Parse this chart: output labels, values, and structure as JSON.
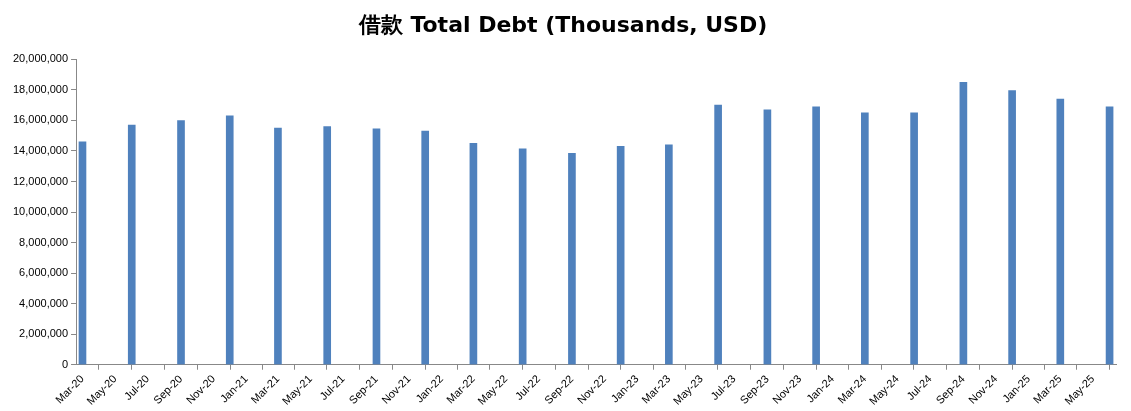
{
  "chart_data": {
    "type": "bar",
    "title": "借款 Total Debt (Thousands, USD)",
    "x": [
      "2020-03",
      "2020-06",
      "2020-09",
      "2020-12",
      "2021-03",
      "2021-06",
      "2021-09",
      "2021-12",
      "2022-03",
      "2022-06",
      "2022-09",
      "2022-12",
      "2023-03",
      "2023-06",
      "2023-09",
      "2023-12",
      "2024-03",
      "2024-06",
      "2024-09",
      "2024-12",
      "2025-03",
      "2025-06"
    ],
    "series": [
      {
        "color": "#4f81bd",
        "values": [
          14600000,
          15700000,
          16000000,
          16300000,
          15500000,
          15600000,
          15450000,
          15300000,
          14500000,
          14150000,
          13850000,
          14300000,
          14400000,
          17000000,
          16700000,
          16900000,
          16500000,
          16500000,
          18500000,
          17950000,
          17400000,
          16900000
        ]
      }
    ],
    "xlim": [
      "2020-02-18",
      "2025-06-13"
    ],
    "xticks": [
      {
        "value": "2020-03",
        "label": "Mar-20"
      },
      {
        "value": "2020-05",
        "label": "May-20"
      },
      {
        "value": "2020-07",
        "label": "Jul-20"
      },
      {
        "value": "2020-09",
        "label": "Sep-20"
      },
      {
        "value": "2020-11",
        "label": "Nov-20"
      },
      {
        "value": "2021-01",
        "label": "Jan-21"
      },
      {
        "value": "2021-03",
        "label": "Mar-21"
      },
      {
        "value": "2021-05",
        "label": "May-21"
      },
      {
        "value": "2021-07",
        "label": "Jul-21"
      },
      {
        "value": "2021-09",
        "label": "Sep-21"
      },
      {
        "value": "2021-11",
        "label": "Nov-21"
      },
      {
        "value": "2022-01",
        "label": "Jan-22"
      },
      {
        "value": "2022-03",
        "label": "Mar-22"
      },
      {
        "value": "2022-05",
        "label": "May-22"
      },
      {
        "value": "2022-07",
        "label": "Jul-22"
      },
      {
        "value": "2022-09",
        "label": "Sep-22"
      },
      {
        "value": "2022-11",
        "label": "Nov-22"
      },
      {
        "value": "2023-01",
        "label": "Jan-23"
      },
      {
        "value": "2023-03",
        "label": "Mar-23"
      },
      {
        "value": "2023-05",
        "label": "May-23"
      },
      {
        "value": "2023-07",
        "label": "Jul-23"
      },
      {
        "value": "2023-09",
        "label": "Sep-23"
      },
      {
        "value": "2023-11",
        "label": "Nov-23"
      },
      {
        "value": "2024-01",
        "label": "Jan-24"
      },
      {
        "value": "2024-03",
        "label": "Mar-24"
      },
      {
        "value": "2024-05",
        "label": "May-24"
      },
      {
        "value": "2024-07",
        "label": "Jul-24"
      },
      {
        "value": "2024-09",
        "label": "Sep-24"
      },
      {
        "value": "2024-11",
        "label": "Nov-24"
      },
      {
        "value": "2025-01",
        "label": "Jan-25"
      },
      {
        "value": "2025-03",
        "label": "Mar-25"
      },
      {
        "value": "2025-05",
        "label": "May-25"
      }
    ],
    "ylim": [
      0,
      20000000
    ],
    "yticks": [
      {
        "value": 0,
        "label": "0"
      },
      {
        "value": 2000000,
        "label": "2,000,000"
      },
      {
        "value": 4000000,
        "label": "4,000,000"
      },
      {
        "value": 6000000,
        "label": "6,000,000"
      },
      {
        "value": 8000000,
        "label": "8,000,000"
      },
      {
        "value": 10000000,
        "label": "10,000,000"
      },
      {
        "value": 12000000,
        "label": "12,000,000"
      },
      {
        "value": 14000000,
        "label": "14,000,000"
      },
      {
        "value": 16000000,
        "label": "16,000,000"
      },
      {
        "value": 18000000,
        "label": "18,000,000"
      },
      {
        "value": 20000000,
        "label": "20,000,000"
      }
    ]
  }
}
